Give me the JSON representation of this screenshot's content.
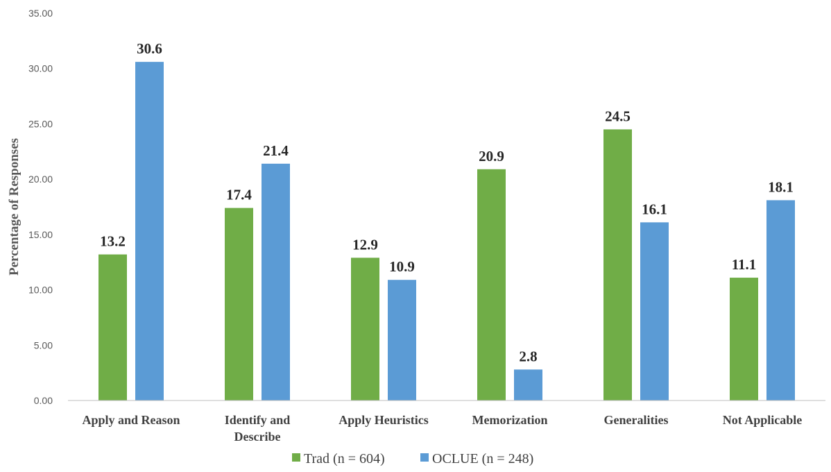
{
  "chart_data": {
    "type": "bar",
    "title": "",
    "xlabel": "",
    "ylabel": "Percentage of Responses",
    "ylim": [
      0,
      35
    ],
    "yticks": [
      "0.00",
      "5.00",
      "10.00",
      "15.00",
      "20.00",
      "25.00",
      "30.00",
      "35.00"
    ],
    "categories": [
      [
        "Apply and Reason"
      ],
      [
        "Identify and",
        "Describe"
      ],
      [
        "Apply Heuristics"
      ],
      [
        "Memorization"
      ],
      [
        "Generalities"
      ],
      [
        "Not Applicable"
      ]
    ],
    "series": [
      {
        "name": "Trad (n = 604)",
        "color": "#70AD47",
        "values": [
          13.2,
          17.4,
          12.9,
          20.9,
          24.5,
          11.1
        ]
      },
      {
        "name": "OCLUE (n = 248)",
        "color": "#5B9BD5",
        "values": [
          30.6,
          21.4,
          10.9,
          2.8,
          16.1,
          18.1
        ]
      }
    ],
    "grid": false,
    "legend": "bottom"
  }
}
